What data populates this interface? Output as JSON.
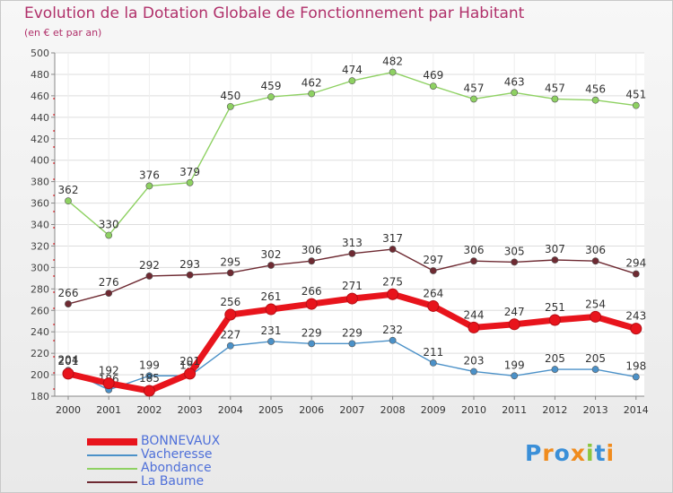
{
  "chart_data": {
    "type": "line",
    "title": "Evolution de la Dotation Globale de Fonctionnement par Habitant",
    "subtitle": "(en € et par an)",
    "categories": [
      "2000",
      "2001",
      "2002",
      "2003",
      "2004",
      "2005",
      "2006",
      "2007",
      "2008",
      "2009",
      "2010",
      "2011",
      "2012",
      "2013",
      "2014"
    ],
    "ylim": [
      180,
      500
    ],
    "yticks": [
      180,
      200,
      220,
      240,
      260,
      280,
      300,
      320,
      340,
      360,
      380,
      400,
      420,
      440,
      460,
      480,
      500
    ],
    "grid": true,
    "series": [
      {
        "name": "BONNEVAUX",
        "color": "#e8141c",
        "values": [
          201,
          192,
          185,
          201,
          256,
          261,
          266,
          271,
          275,
          264,
          244,
          247,
          251,
          254,
          243
        ]
      },
      {
        "name": "Vacheresse",
        "color": "#4b91c8",
        "values": [
          204,
          186,
          199,
          199,
          227,
          231,
          229,
          229,
          232,
          211,
          203,
          199,
          205,
          205,
          198
        ]
      },
      {
        "name": "Abondance",
        "color": "#8ed162",
        "values": [
          362,
          330,
          376,
          379,
          450,
          459,
          462,
          474,
          482,
          469,
          457,
          463,
          457,
          456,
          451
        ]
      },
      {
        "name": "La Baume",
        "color": "#6e2a32",
        "values": [
          266,
          276,
          292,
          293,
          295,
          302,
          306,
          313,
          317,
          297,
          306,
          305,
          307,
          306,
          294
        ]
      }
    ]
  },
  "logo": {
    "letters": [
      "P",
      "r",
      "o",
      "x",
      "i",
      "t",
      "i"
    ],
    "colors": [
      "#3a8fd8",
      "#f08c1e",
      "#3a8fd8",
      "#f08c1e",
      "#8cc63e",
      "#3a8fd8",
      "#f08c1e"
    ]
  }
}
